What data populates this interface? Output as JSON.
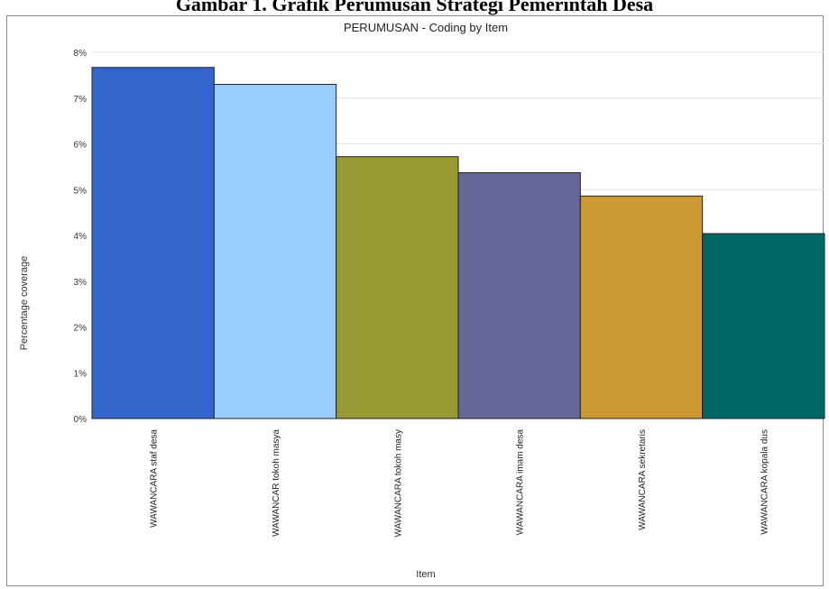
{
  "caption": "Gambar 1. Grafik Perumusan Strategi Pemerintah Desa",
  "chart_data": {
    "type": "bar",
    "title": "PERUMUSAN - Coding by Item",
    "xlabel": "Item",
    "ylabel": "Percentage coverage",
    "ylim": [
      0,
      8
    ],
    "y_ticks": [
      "0%",
      "1%",
      "2%",
      "3%",
      "4%",
      "5%",
      "6%",
      "7%",
      "8%"
    ],
    "grid": true,
    "categories": [
      "WAWANCARA staf desa",
      "WAWANCAR tokoh masya",
      "WAWANCARA tokoh masy",
      "WAWANCARA imam desa",
      "WAWANCARA sekretaris",
      "WAWANCARA kopala dus"
    ],
    "values": [
      7.67,
      7.3,
      5.72,
      5.37,
      4.86,
      4.04
    ],
    "colors": [
      "#3366cc",
      "#99ccff",
      "#999933",
      "#666699",
      "#cc9933",
      "#006666"
    ]
  }
}
